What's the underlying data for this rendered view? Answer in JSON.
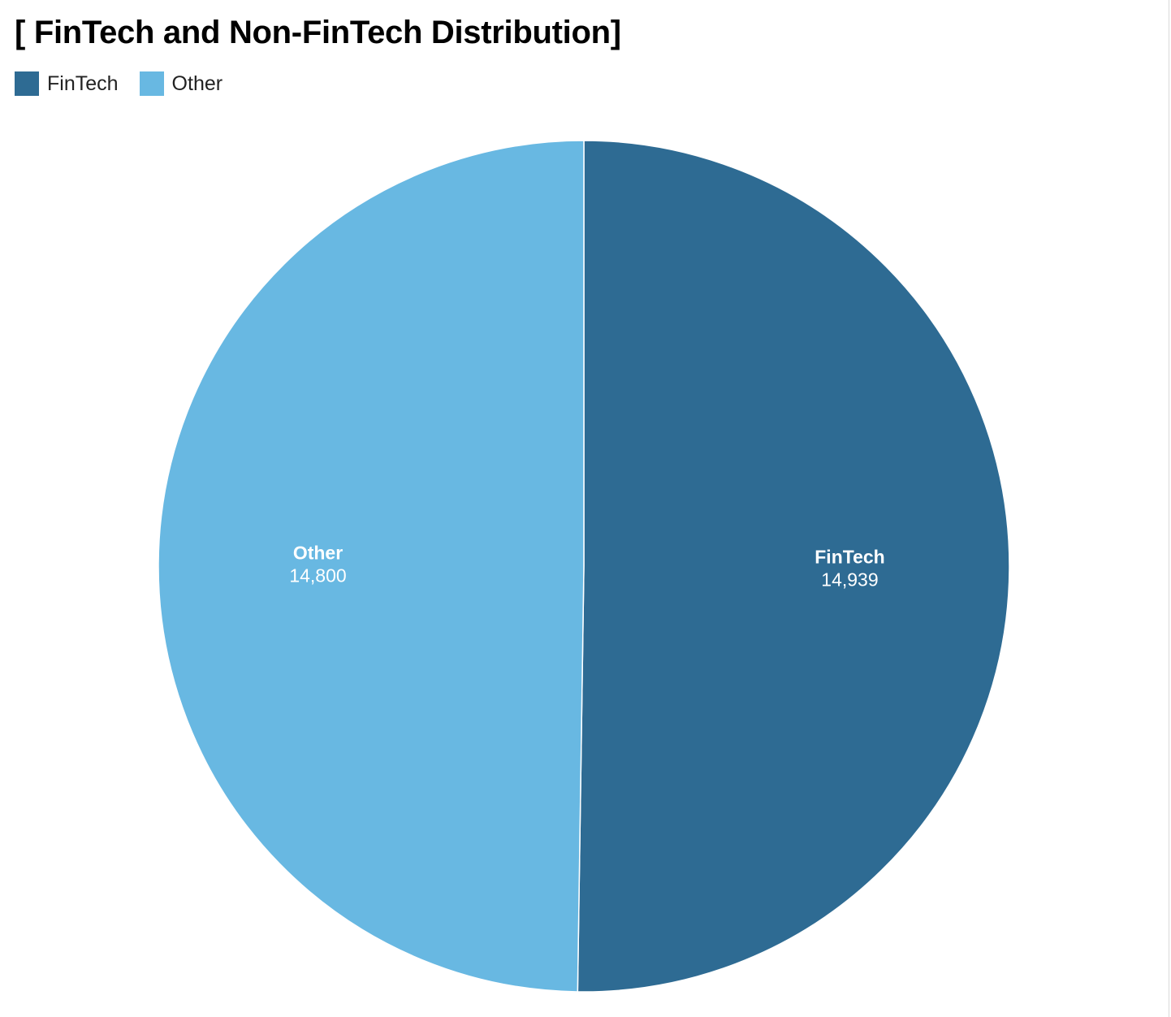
{
  "chart_data": {
    "type": "pie",
    "title": "[ FinTech and Non-FinTech Distribution]",
    "legend_position": "top-left",
    "slices": [
      {
        "name": "FinTech",
        "value": 14939,
        "label": "14,939",
        "color": "#2e6b93"
      },
      {
        "name": "Other",
        "value": 14800,
        "label": "14,800",
        "color": "#68b8e2"
      }
    ]
  }
}
